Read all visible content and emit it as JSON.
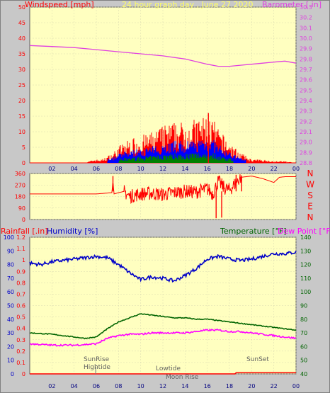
{
  "header": {
    "windspeed_label": "Windspeed [mph]",
    "title": "24 hour graph day , June 27 2020",
    "barometer_label": "Barometer [.in]"
  },
  "direction_labels": [
    "N",
    "W",
    "S",
    "E",
    "N"
  ],
  "bottom_header": {
    "rainfall_label": "Rainfall [.in]",
    "humidity_label": "Humidity [%]",
    "temperature_label": "Temperature [°F]",
    "dewpoint_label": "Dew Point [°F]"
  },
  "events": {
    "sunrise": "SunRise",
    "hightide": "Hightide",
    "lowtide": "Lowtide",
    "moonrise": "Moon Rise",
    "sunset": "SunSet"
  },
  "colors": {
    "plot_bg": "#ffffc0",
    "frame": "#c8c8c8",
    "wind": "#ff0000",
    "wind_avg": "#0000ff",
    "wind_low": "#008000",
    "barometer": "#e040e0",
    "direction": "#ff0000",
    "humidity": "#0000c8",
    "temperature": "#006400",
    "dewpoint": "#ff00ff",
    "rain": "#ff0000"
  },
  "chart_data": [
    {
      "type": "bar",
      "x_ticks": [
        "02",
        "04",
        "06",
        "08",
        "10",
        "12",
        "14",
        "16",
        "18",
        "20",
        "22",
        "00"
      ],
      "y_left_ticks": [
        0,
        5,
        10,
        15,
        20,
        25,
        30,
        35,
        40,
        45,
        50
      ],
      "y_right_ticks": [
        28.8,
        28.9,
        29.0,
        29.1,
        29.2,
        29.3,
        29.4,
        29.5,
        29.6,
        29.7,
        29.8,
        29.9,
        30.0,
        30.1,
        30.2,
        30.3
      ],
      "ylim_left": [
        0,
        50
      ],
      "ylim_right": [
        28.8,
        30.3
      ],
      "xlim": [
        0,
        24
      ],
      "series": [
        {
          "name": "Windspeed [mph]",
          "gust_envelope": [
            [
              5,
              0
            ],
            [
              5.8,
              1
            ],
            [
              6.5,
              1
            ],
            [
              7,
              2
            ],
            [
              7.5,
              3
            ],
            [
              8,
              5
            ],
            [
              9,
              7
            ],
            [
              10,
              8
            ],
            [
              11,
              9
            ],
            [
              12,
              11
            ],
            [
              13,
              12
            ],
            [
              14,
              12
            ],
            [
              15,
              13
            ],
            [
              16,
              14
            ],
            [
              16.5,
              13
            ],
            [
              17,
              10
            ],
            [
              18,
              6
            ],
            [
              19,
              3
            ],
            [
              20,
              1
            ],
            [
              21,
              1
            ],
            [
              22,
              0.5
            ],
            [
              23,
              0.5
            ],
            [
              24,
              0
            ]
          ],
          "peak": [
            16.1,
            16
          ]
        },
        {
          "name": "Barometer [.in]",
          "x": [
            0,
            2,
            4,
            6,
            8,
            10,
            12,
            14,
            16,
            17,
            18,
            19,
            20,
            21,
            22,
            23,
            24
          ],
          "values": [
            29.93,
            29.92,
            29.91,
            29.89,
            29.87,
            29.85,
            29.83,
            29.8,
            29.75,
            29.73,
            29.73,
            29.74,
            29.75,
            29.76,
            29.77,
            29.78,
            29.76
          ]
        }
      ]
    },
    {
      "type": "line",
      "name": "Wind Direction",
      "y_ticks": [
        0,
        90,
        180,
        270,
        360
      ],
      "ylim": [
        0,
        360
      ],
      "xlim": [
        0,
        24
      ],
      "x": [
        0,
        6,
        7.4,
        7.5,
        7.6,
        8,
        8.5,
        9,
        10,
        11,
        12,
        13,
        14,
        15,
        16,
        16.5,
        17,
        17.5,
        18,
        19,
        20,
        21,
        22,
        22.5,
        23,
        24
      ],
      "values": [
        200,
        200,
        210,
        300,
        200,
        210,
        220,
        180,
        200,
        205,
        195,
        210,
        220,
        215,
        240,
        200,
        300,
        250,
        230,
        330,
        340,
        320,
        290,
        330,
        335,
        335
      ]
    },
    {
      "type": "line",
      "xlim": [
        0,
        24
      ],
      "x_ticks": [
        "02",
        "04",
        "06",
        "08",
        "10",
        "12",
        "14",
        "16",
        "18",
        "20",
        "22",
        "00"
      ],
      "y_rain_ticks": [
        0,
        0.1,
        0.2,
        0.3,
        0.4,
        0.5,
        0.6,
        0.7,
        0.8,
        0.9,
        1,
        1.1,
        1.2
      ],
      "y_humidity_ticks": [
        0,
        10,
        20,
        30,
        40,
        50,
        60,
        70,
        80,
        90,
        100
      ],
      "y_temp_ticks": [
        40,
        50,
        60,
        70,
        80,
        90,
        100,
        110,
        120,
        130,
        140
      ],
      "series": [
        {
          "name": "Humidity [%]",
          "x": [
            0,
            1,
            2,
            3,
            4,
            5,
            6,
            7,
            8,
            9,
            10,
            11,
            12,
            13,
            14,
            15,
            16,
            17,
            18,
            19,
            20,
            21,
            22,
            23,
            24
          ],
          "values": [
            81,
            80,
            82,
            83,
            84,
            85,
            86,
            85,
            80,
            74,
            69,
            71,
            70,
            68,
            72,
            77,
            84,
            86,
            84,
            83,
            84,
            86,
            88,
            88,
            89
          ]
        },
        {
          "name": "Temperature [°F]",
          "x": [
            0,
            2,
            4,
            5,
            6,
            7,
            8,
            9,
            10,
            11,
            12,
            13,
            14,
            15,
            16,
            17,
            18,
            19,
            20,
            21,
            22,
            23,
            24
          ],
          "values": [
            70,
            69,
            67,
            66,
            67,
            73,
            78,
            81,
            84,
            83,
            82,
            81,
            81,
            80,
            80,
            79,
            78,
            77,
            76,
            75,
            74,
            73,
            72
          ]
        },
        {
          "name": "Dew Point [°F]",
          "x": [
            0,
            2,
            4,
            6,
            7,
            8,
            9,
            10,
            11,
            12,
            13,
            14,
            15,
            16,
            17,
            18,
            19,
            20,
            21,
            22,
            23,
            24
          ],
          "values": [
            62,
            61,
            61,
            62,
            66,
            68,
            69,
            69,
            70,
            70,
            70,
            70,
            71,
            72,
            72,
            71,
            71,
            70,
            69,
            68,
            67,
            66
          ]
        },
        {
          "name": "Rainfall [.in]",
          "x": [
            0,
            18.5,
            18.6,
            24
          ],
          "values": [
            0,
            0,
            0.01,
            0.01
          ]
        }
      ]
    }
  ]
}
